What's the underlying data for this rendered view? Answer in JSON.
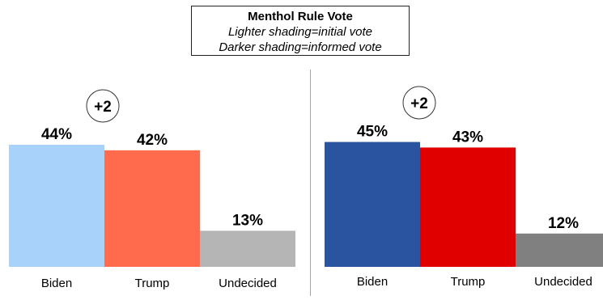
{
  "legend": {
    "title": "Menthol Rule Vote",
    "line1": "Lighter shading=initial vote",
    "line2": "Darker shading=informed vote"
  },
  "chart_data": [
    {
      "type": "bar",
      "categories": [
        "Biden",
        "Trump",
        "Undecided"
      ],
      "values": [
        44,
        42,
        13
      ],
      "value_labels": [
        "44%",
        "42%",
        "13%"
      ],
      "colors": [
        "#a9d2fb",
        "#ff6b4c",
        "#b5b5b5"
      ],
      "margin_label": "+2",
      "ylim": [
        0,
        60
      ]
    },
    {
      "type": "bar",
      "categories": [
        "Biden",
        "Trump",
        "Undecided"
      ],
      "values": [
        45,
        43,
        12
      ],
      "value_labels": [
        "45%",
        "43%",
        "12%"
      ],
      "colors": [
        "#2b54a0",
        "#e10000",
        "#808080"
      ],
      "margin_label": "+2",
      "ylim": [
        0,
        60
      ]
    }
  ]
}
